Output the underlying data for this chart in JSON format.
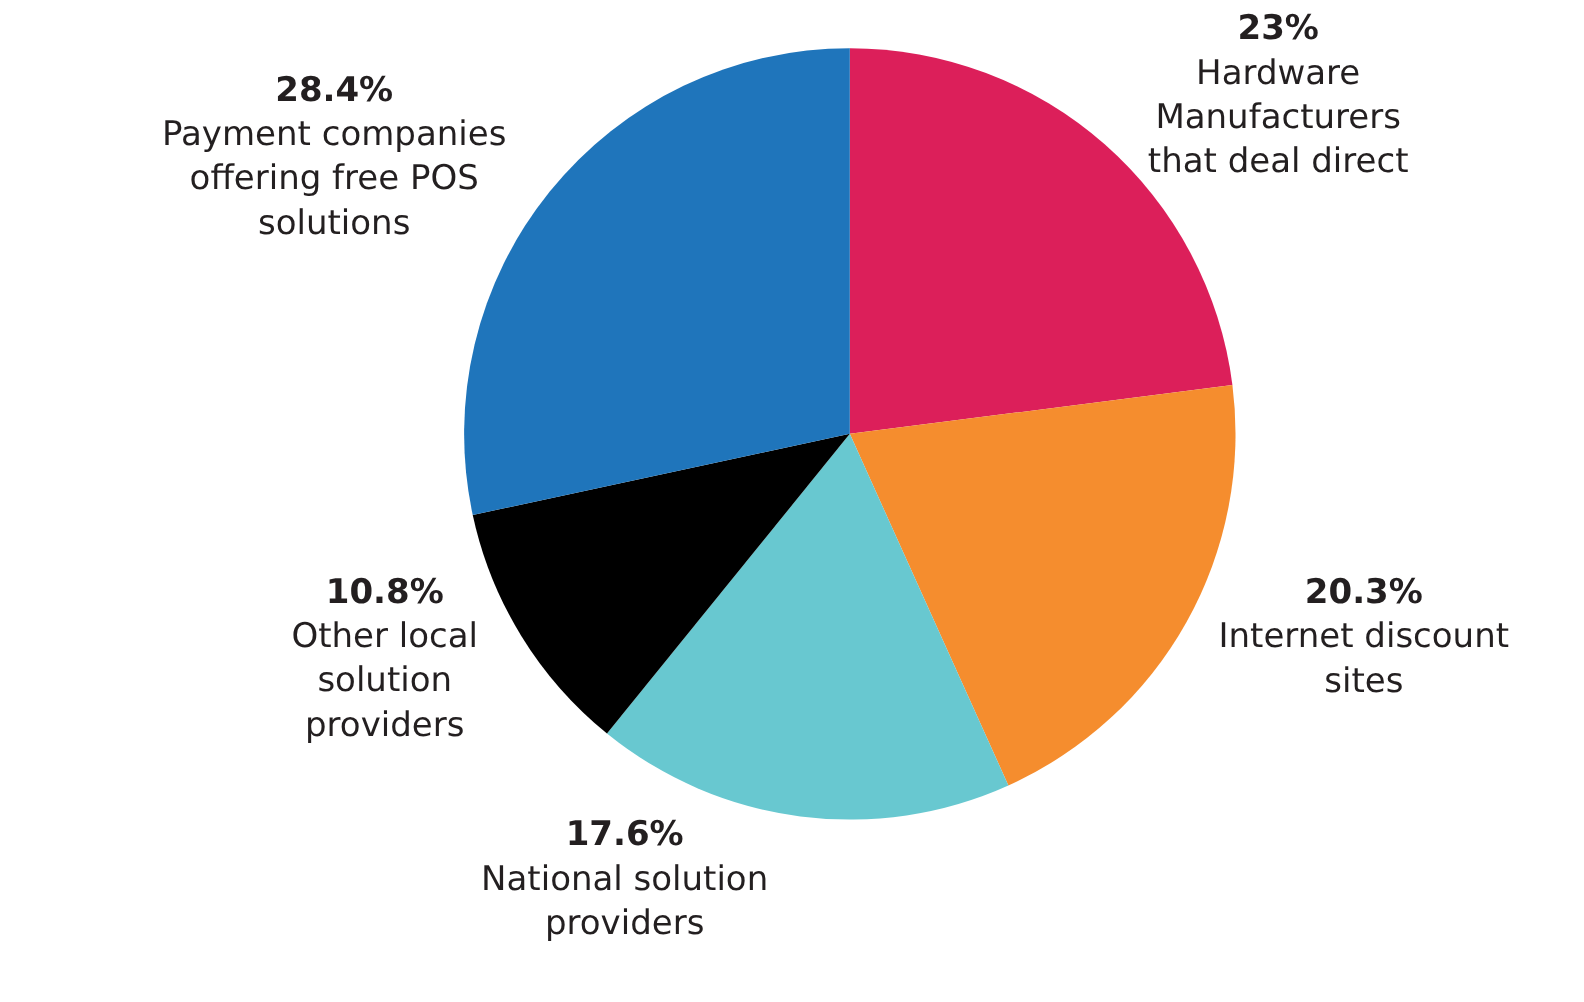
{
  "chart_data": {
    "type": "pie",
    "categories": [
      "Hardware Manufacturers that deal direct",
      "Internet discount sites",
      "National solution providers",
      "Other local solution providers",
      "Payment companies offering free POS solutions"
    ],
    "values": [
      23,
      20.3,
      17.6,
      10.8,
      28.4
    ],
    "value_labels": [
      "23%",
      "20.3%",
      "17.6%",
      "10.8%",
      "28.4%"
    ],
    "colors": [
      "#dc1f5a",
      "#f58d2e",
      "#68c8d0",
      "#000000",
      "#1f75bb"
    ],
    "legend": false
  }
}
